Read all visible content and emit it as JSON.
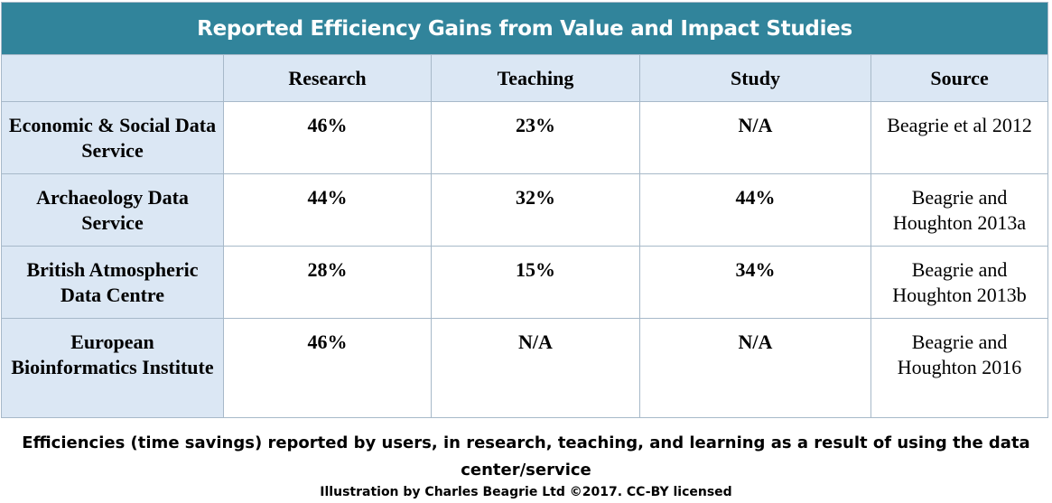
{
  "table": {
    "title": "Reported Efficiency Gains from Value and Impact Studies",
    "columns": [
      "",
      "Research",
      "Teaching",
      "Study",
      "Source"
    ],
    "rows": [
      {
        "label": "Economic & Social Data Service",
        "research": "46%",
        "teaching": "23%",
        "study": "N/A",
        "source": "Beagrie et al 2012"
      },
      {
        "label": "Archaeology Data Service",
        "research": "44%",
        "teaching": "32%",
        "study": "44%",
        "source": "Beagrie and Houghton 2013a"
      },
      {
        "label": "British Atmospheric Data Centre",
        "research": "28%",
        "teaching": "15%",
        "study": "34%",
        "source": "Beagrie and Houghton 2013b"
      },
      {
        "label": "European Bioinformatics Institute",
        "research": "46%",
        "teaching": "N/A",
        "study": "N/A",
        "source": "Beagrie and Houghton 2016"
      }
    ]
  },
  "caption": "Efficiencies (time savings) reported by users, in research, teaching, and learning as a result of using the data center/service",
  "credit": "Illustration by Charles Beagrie Ltd ©2017. CC-BY licensed",
  "colors": {
    "title_bg": "#31849b",
    "header_bg": "#dbe7f4",
    "border": "#a7b9c9"
  }
}
